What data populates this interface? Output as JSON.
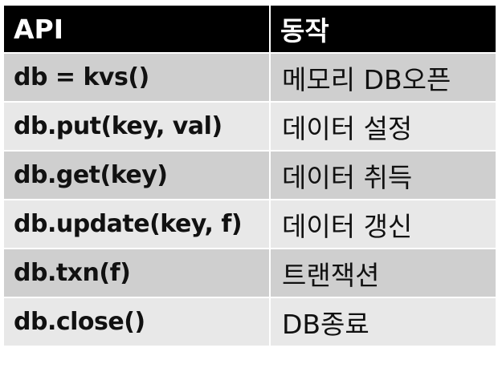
{
  "table": {
    "headers": [
      "API",
      "동작"
    ],
    "rows": [
      {
        "api": "db = kvs()",
        "action": "메모리 DB오픈"
      },
      {
        "api": "db.put(key, val)",
        "action": "데이터 설정"
      },
      {
        "api": "db.get(key)",
        "action": "데이터 취득"
      },
      {
        "api": "db.update(key, f)",
        "action": "데이터 갱신"
      },
      {
        "api": "db.txn(f)",
        "action": "트랜잭션"
      },
      {
        "api": "db.close()",
        "action": "DB종료"
      }
    ],
    "colors": {
      "header_bg": "#000000",
      "header_text": "#ffffff",
      "row_dark": "#cfcfcf",
      "row_light": "#e8e8e8"
    }
  }
}
